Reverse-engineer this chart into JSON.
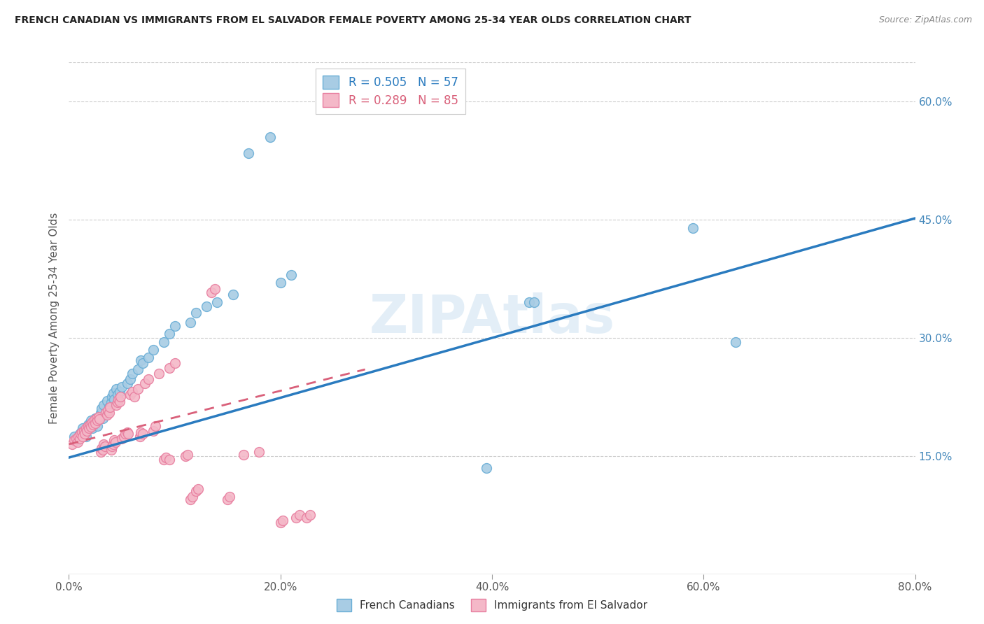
{
  "title": "FRENCH CANADIAN VS IMMIGRANTS FROM EL SALVADOR FEMALE POVERTY AMONG 25-34 YEAR OLDS CORRELATION CHART",
  "source": "Source: ZipAtlas.com",
  "xlabel_ticks": [
    "0.0%",
    "20.0%",
    "40.0%",
    "60.0%",
    "80.0%"
  ],
  "ylabel": "Female Poverty Among 25-34 Year Olds",
  "right_yticks": [
    "15.0%",
    "30.0%",
    "45.0%",
    "60.0%"
  ],
  "right_ytick_vals": [
    0.15,
    0.3,
    0.45,
    0.6
  ],
  "xlim": [
    0.0,
    0.8
  ],
  "ylim": [
    0.0,
    0.65
  ],
  "legend_blue_R": "R = 0.505",
  "legend_blue_N": "N = 57",
  "legend_pink_R": "R = 0.289",
  "legend_pink_N": "N = 85",
  "legend_label_blue": "French Canadians",
  "legend_label_pink": "Immigrants from El Salvador",
  "watermark": "ZIPAtlas",
  "blue_color": "#a8cce4",
  "blue_edge_color": "#6aaed6",
  "pink_color": "#f4b8c8",
  "pink_edge_color": "#e87fa0",
  "blue_line_color": "#2a7bbf",
  "pink_line_color": "#d9607a",
  "blue_line_x": [
    0.0,
    0.8
  ],
  "blue_line_y": [
    0.148,
    0.452
  ],
  "pink_line_x": [
    0.0,
    0.28
  ],
  "pink_line_y": [
    0.165,
    0.26
  ],
  "blue_scatter": [
    [
      0.005,
      0.175
    ],
    [
      0.008,
      0.17
    ],
    [
      0.01,
      0.178
    ],
    [
      0.012,
      0.182
    ],
    [
      0.013,
      0.185
    ],
    [
      0.015,
      0.18
    ],
    [
      0.016,
      0.175
    ],
    [
      0.017,
      0.183
    ],
    [
      0.018,
      0.19
    ],
    [
      0.02,
      0.188
    ],
    [
      0.021,
      0.195
    ],
    [
      0.022,
      0.185
    ],
    [
      0.023,
      0.192
    ],
    [
      0.025,
      0.198
    ],
    [
      0.026,
      0.195
    ],
    [
      0.027,
      0.188
    ],
    [
      0.028,
      0.2
    ],
    [
      0.03,
      0.205
    ],
    [
      0.031,
      0.21
    ],
    [
      0.032,
      0.198
    ],
    [
      0.033,
      0.215
    ],
    [
      0.035,
      0.205
    ],
    [
      0.036,
      0.22
    ],
    [
      0.038,
      0.212
    ],
    [
      0.04,
      0.218
    ],
    [
      0.041,
      0.225
    ],
    [
      0.042,
      0.23
    ],
    [
      0.043,
      0.222
    ],
    [
      0.045,
      0.235
    ],
    [
      0.046,
      0.228
    ],
    [
      0.048,
      0.232
    ],
    [
      0.05,
      0.238
    ],
    [
      0.055,
      0.242
    ],
    [
      0.058,
      0.248
    ],
    [
      0.06,
      0.255
    ],
    [
      0.065,
      0.26
    ],
    [
      0.068,
      0.272
    ],
    [
      0.07,
      0.268
    ],
    [
      0.075,
      0.275
    ],
    [
      0.08,
      0.285
    ],
    [
      0.09,
      0.295
    ],
    [
      0.095,
      0.305
    ],
    [
      0.1,
      0.315
    ],
    [
      0.115,
      0.32
    ],
    [
      0.12,
      0.332
    ],
    [
      0.13,
      0.34
    ],
    [
      0.14,
      0.345
    ],
    [
      0.155,
      0.355
    ],
    [
      0.17,
      0.535
    ],
    [
      0.19,
      0.555
    ],
    [
      0.2,
      0.37
    ],
    [
      0.21,
      0.38
    ],
    [
      0.395,
      0.135
    ],
    [
      0.435,
      0.345
    ],
    [
      0.44,
      0.345
    ],
    [
      0.59,
      0.44
    ],
    [
      0.63,
      0.295
    ]
  ],
  "pink_scatter": [
    [
      0.003,
      0.165
    ],
    [
      0.005,
      0.17
    ],
    [
      0.007,
      0.172
    ],
    [
      0.008,
      0.168
    ],
    [
      0.009,
      0.175
    ],
    [
      0.01,
      0.172
    ],
    [
      0.011,
      0.178
    ],
    [
      0.012,
      0.18
    ],
    [
      0.013,
      0.175
    ],
    [
      0.014,
      0.182
    ],
    [
      0.015,
      0.178
    ],
    [
      0.016,
      0.185
    ],
    [
      0.017,
      0.182
    ],
    [
      0.018,
      0.188
    ],
    [
      0.019,
      0.185
    ],
    [
      0.02,
      0.19
    ],
    [
      0.021,
      0.187
    ],
    [
      0.022,
      0.193
    ],
    [
      0.023,
      0.19
    ],
    [
      0.024,
      0.196
    ],
    [
      0.025,
      0.192
    ],
    [
      0.026,
      0.198
    ],
    [
      0.027,
      0.195
    ],
    [
      0.028,
      0.2
    ],
    [
      0.029,
      0.197
    ],
    [
      0.03,
      0.155
    ],
    [
      0.031,
      0.16
    ],
    [
      0.032,
      0.158
    ],
    [
      0.033,
      0.165
    ],
    [
      0.034,
      0.162
    ],
    [
      0.035,
      0.205
    ],
    [
      0.036,
      0.202
    ],
    [
      0.037,
      0.208
    ],
    [
      0.038,
      0.205
    ],
    [
      0.039,
      0.212
    ],
    [
      0.04,
      0.158
    ],
    [
      0.041,
      0.162
    ],
    [
      0.042,
      0.165
    ],
    [
      0.043,
      0.17
    ],
    [
      0.044,
      0.168
    ],
    [
      0.045,
      0.215
    ],
    [
      0.046,
      0.218
    ],
    [
      0.047,
      0.222
    ],
    [
      0.048,
      0.219
    ],
    [
      0.049,
      0.225
    ],
    [
      0.05,
      0.172
    ],
    [
      0.052,
      0.175
    ],
    [
      0.053,
      0.178
    ],
    [
      0.055,
      0.18
    ],
    [
      0.056,
      0.178
    ],
    [
      0.058,
      0.228
    ],
    [
      0.06,
      0.232
    ],
    [
      0.062,
      0.225
    ],
    [
      0.065,
      0.235
    ],
    [
      0.067,
      0.175
    ],
    [
      0.068,
      0.18
    ],
    [
      0.07,
      0.178
    ],
    [
      0.072,
      0.242
    ],
    [
      0.075,
      0.248
    ],
    [
      0.08,
      0.182
    ],
    [
      0.082,
      0.188
    ],
    [
      0.085,
      0.255
    ],
    [
      0.09,
      0.145
    ],
    [
      0.092,
      0.148
    ],
    [
      0.095,
      0.145
    ],
    [
      0.095,
      0.262
    ],
    [
      0.1,
      0.268
    ],
    [
      0.11,
      0.15
    ],
    [
      0.112,
      0.152
    ],
    [
      0.115,
      0.095
    ],
    [
      0.117,
      0.098
    ],
    [
      0.12,
      0.105
    ],
    [
      0.122,
      0.108
    ],
    [
      0.135,
      0.358
    ],
    [
      0.138,
      0.362
    ],
    [
      0.15,
      0.095
    ],
    [
      0.152,
      0.098
    ],
    [
      0.165,
      0.152
    ],
    [
      0.18,
      0.155
    ],
    [
      0.2,
      0.065
    ],
    [
      0.202,
      0.068
    ],
    [
      0.215,
      0.072
    ],
    [
      0.218,
      0.075
    ],
    [
      0.225,
      0.072
    ],
    [
      0.228,
      0.075
    ]
  ]
}
